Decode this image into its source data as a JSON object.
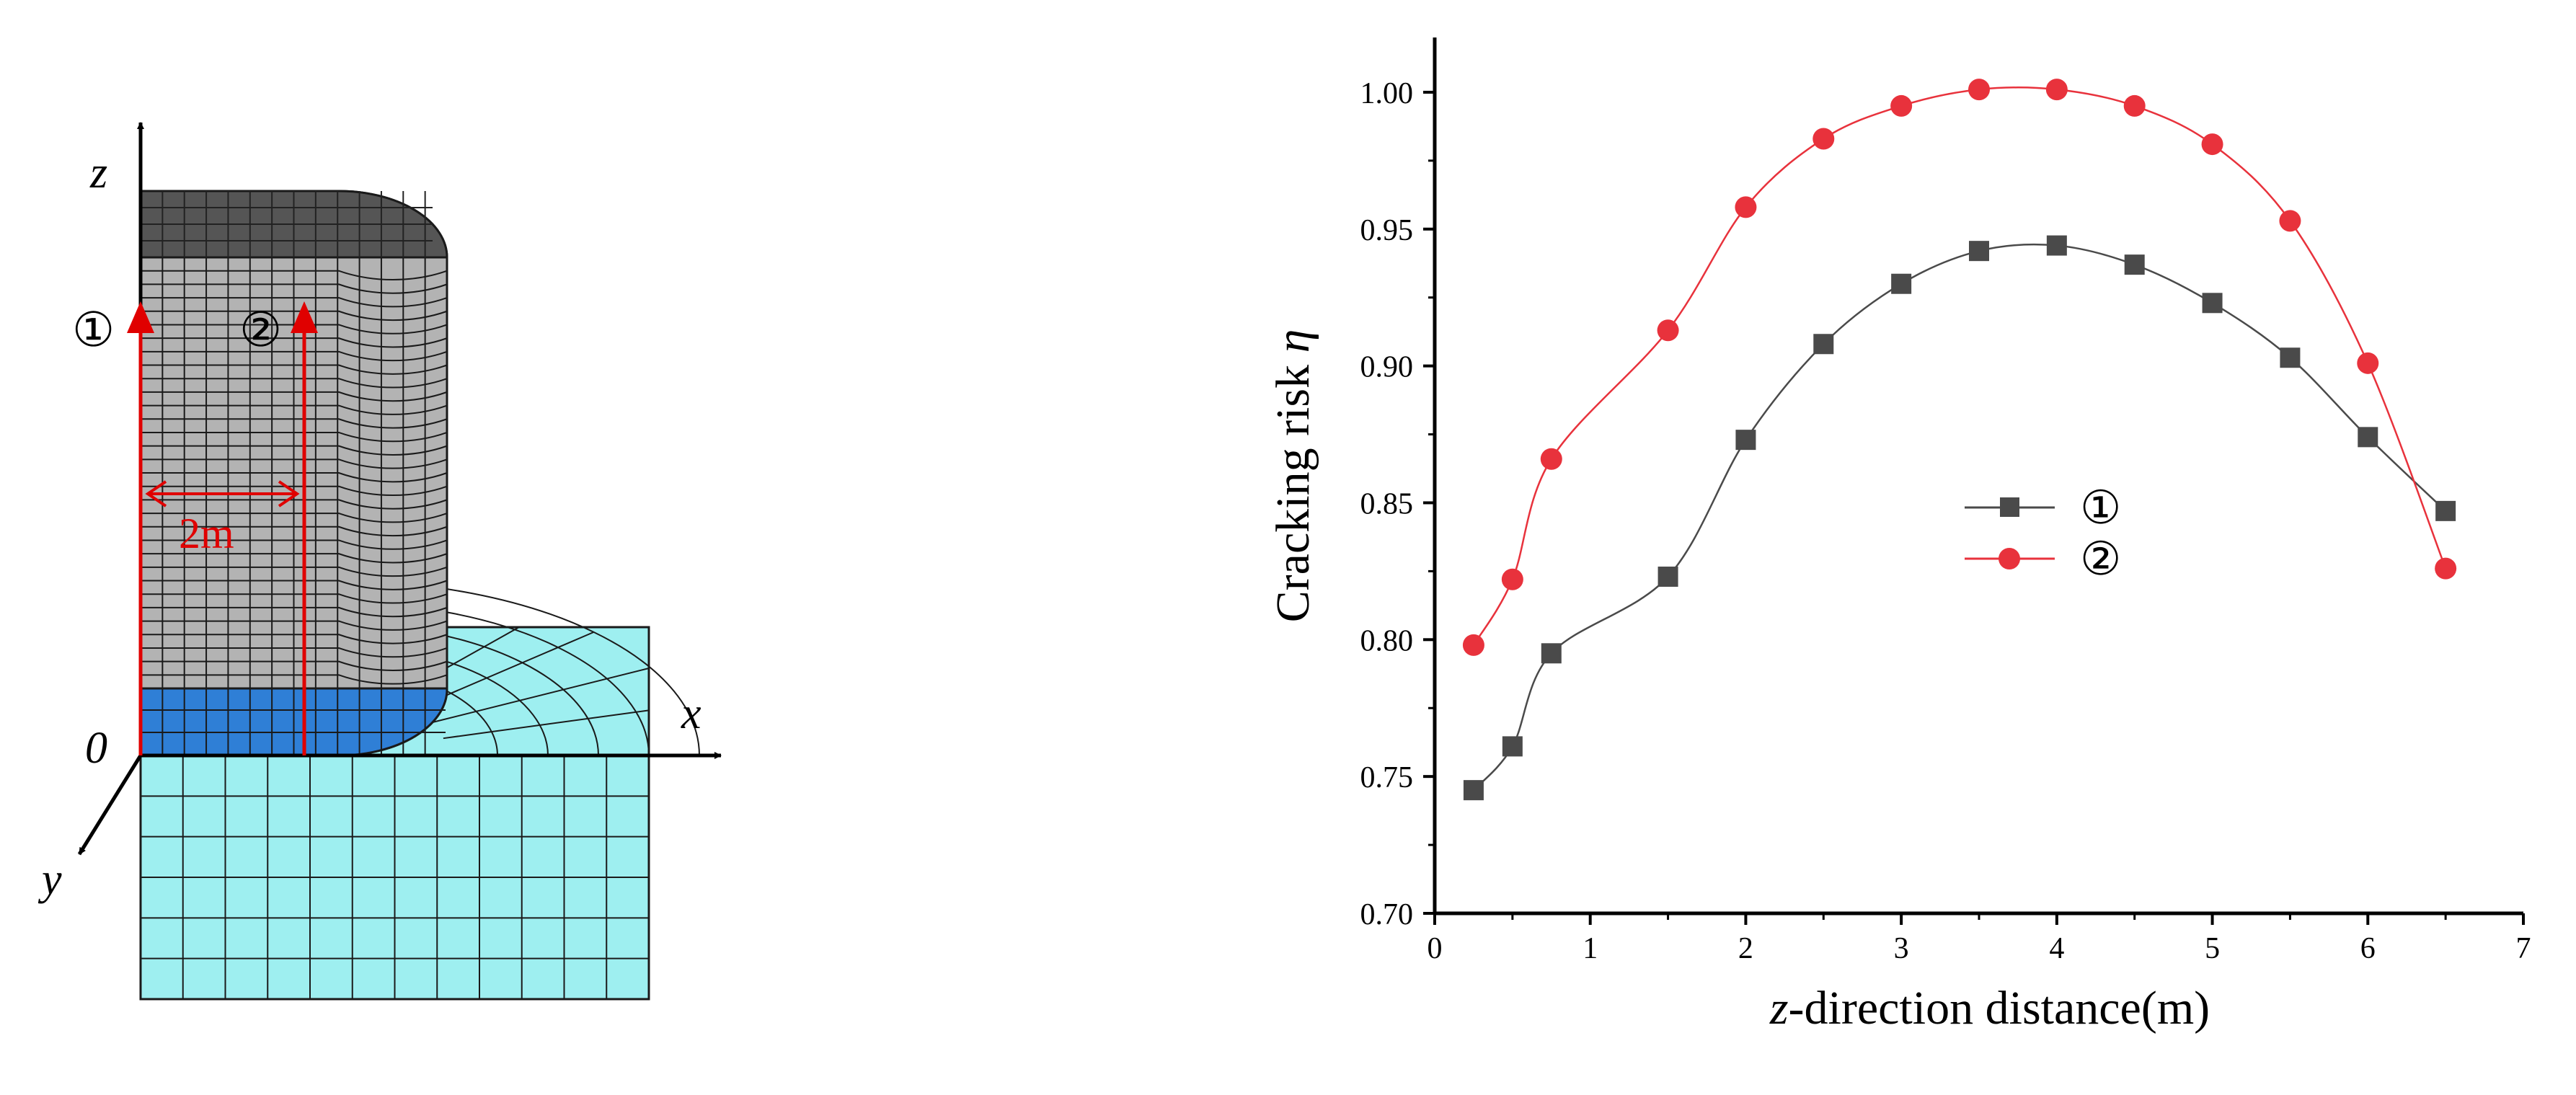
{
  "model": {
    "axis_labels": {
      "z": "z",
      "x": "x",
      "y": "y",
      "origin": "0"
    },
    "markers": {
      "line1": "①",
      "line2": "②"
    },
    "dimension": "2m",
    "colors": {
      "concrete": "#b3b3b3",
      "concrete_top": "#555555",
      "cushion": "#2f7fd6",
      "foundation": "#9eeff0",
      "mesh": "#1a1a1a",
      "path": "#e00000"
    }
  },
  "chart_data": {
    "type": "line",
    "xlabel_italic": "z",
    "xlabel_rest": "-direction distance(m)",
    "ylabel": "Cracking risk",
    "ylabel_symbol": "η",
    "xlim": [
      0,
      7
    ],
    "ylim": [
      0.7,
      1.02
    ],
    "xticks": [
      "0",
      "1",
      "2",
      "3",
      "4",
      "5",
      "6",
      "7"
    ],
    "yticks": [
      "0.70",
      "0.75",
      "0.80",
      "0.85",
      "0.90",
      "0.95",
      "1.00"
    ],
    "legend_position": "center-right",
    "series": [
      {
        "name": "①",
        "marker": "square",
        "color": "#4a4a4a",
        "x": [
          0.25,
          0.5,
          0.75,
          1.5,
          2,
          2.5,
          3,
          3.5,
          4,
          4.5,
          5,
          5.5,
          6,
          6.5
        ],
        "y": [
          0.745,
          0.761,
          0.795,
          0.823,
          0.873,
          0.908,
          0.93,
          0.942,
          0.944,
          0.937,
          0.923,
          0.903,
          0.874,
          0.847
        ]
      },
      {
        "name": "②",
        "marker": "circle",
        "color": "#e8323c",
        "x": [
          0.25,
          0.5,
          0.75,
          1.5,
          2,
          2.5,
          3,
          3.5,
          4,
          4.5,
          5,
          5.5,
          6,
          6.5
        ],
        "y": [
          0.798,
          0.822,
          0.866,
          0.913,
          0.958,
          0.983,
          0.995,
          1.001,
          1.001,
          0.995,
          0.981,
          0.953,
          0.901,
          0.826
        ]
      }
    ]
  }
}
